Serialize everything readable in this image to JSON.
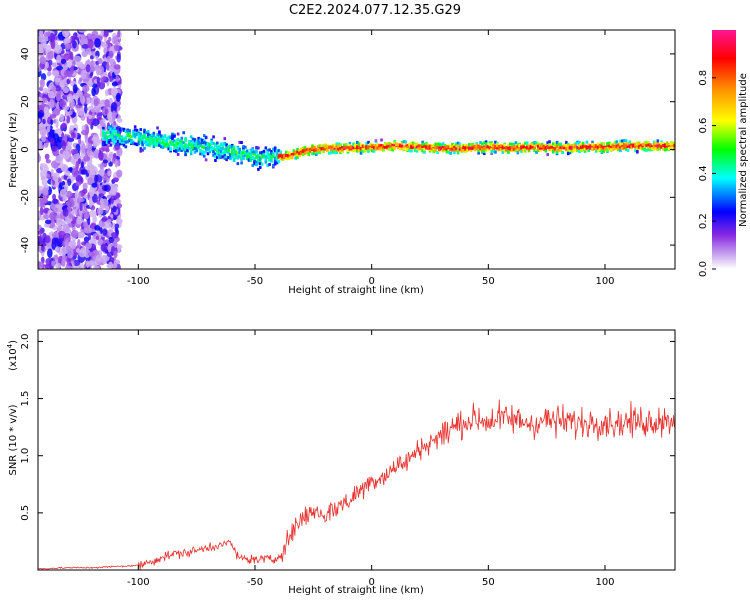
{
  "title": "C2E2.2024.077.12.35.G29",
  "chart_data": [
    {
      "type": "heatmap",
      "xlabel": "Height of straight line (km)",
      "ylabel": "Frequency (Hz)",
      "xlim": [
        -143,
        130
      ],
      "ylim": [
        -50,
        50
      ],
      "xticks": [
        -100,
        -50,
        0,
        50,
        100
      ],
      "yticks": [
        -40,
        -20,
        0,
        20,
        40
      ],
      "grid": false,
      "colorbar": {
        "label": "Normalized spectral amplitude",
        "range": [
          0.0,
          1.0
        ],
        "ticks": [
          0.0,
          0.2,
          0.4,
          0.6,
          0.8
        ],
        "colors": [
          "#ffffff",
          "#c8a6f0",
          "#8a2be2",
          "#0000ff",
          "#00ffff",
          "#00ff00",
          "#ffff00",
          "#ff8800",
          "#ff0000",
          "#ff1493"
        ]
      },
      "ridge": {
        "x": [
          -115,
          -100,
          -90,
          -80,
          -70,
          -60,
          -50,
          -45,
          -40,
          -35,
          -30,
          -25,
          -20,
          -10,
          0,
          10,
          20,
          30,
          40,
          50,
          60,
          70,
          80,
          90,
          100,
          110,
          120,
          130
        ],
        "frequency": [
          6,
          5,
          3,
          2,
          1,
          -1,
          -3,
          -3.5,
          -3,
          -2.5,
          -1,
          0,
          0.5,
          0.5,
          1,
          1.5,
          1,
          0.5,
          0.5,
          1,
          0.5,
          1,
          0.5,
          1,
          1,
          1.5,
          1.5,
          1.5
        ]
      }
    },
    {
      "type": "line",
      "xlabel": "Height of straight line (km)",
      "ylabel": "SNR (10 * v/v)",
      "y_multiplier": "(x10",
      "y_multiplier_exp": "4",
      "xlim": [
        -143,
        130
      ],
      "ylim": [
        0,
        2.1
      ],
      "xticks": [
        -100,
        -50,
        0,
        50,
        100
      ],
      "yticks": [
        0.5,
        1.0,
        1.5,
        2.0
      ],
      "grid": false,
      "series": [
        {
          "color": "#e8322e",
          "x": [
            -143,
            -130,
            -120,
            -110,
            -100,
            -95,
            -90,
            -85,
            -80,
            -75,
            -70,
            -65,
            -60,
            -58,
            -55,
            -50,
            -45,
            -42,
            -40,
            -35,
            -30,
            -25,
            -20,
            -15,
            -10,
            -5,
            0,
            5,
            10,
            15,
            20,
            25,
            30,
            35,
            40,
            45,
            50,
            55,
            60,
            65,
            70,
            75,
            80,
            85,
            90,
            95,
            100,
            105,
            110,
            115,
            120,
            125,
            130
          ],
          "values": [
            0.01,
            0.02,
            0.02,
            0.03,
            0.04,
            0.07,
            0.11,
            0.14,
            0.15,
            0.17,
            0.2,
            0.22,
            0.24,
            0.12,
            0.1,
            0.09,
            0.1,
            0.08,
            0.12,
            0.3,
            0.45,
            0.52,
            0.48,
            0.55,
            0.6,
            0.7,
            0.78,
            0.82,
            0.9,
            0.95,
            1.05,
            1.12,
            1.18,
            1.25,
            1.3,
            1.32,
            1.3,
            1.33,
            1.32,
            1.3,
            1.28,
            1.32,
            1.3,
            1.3,
            1.28,
            1.3,
            1.3,
            1.28,
            1.3,
            1.3,
            1.3,
            1.32,
            1.3
          ]
        }
      ]
    }
  ]
}
